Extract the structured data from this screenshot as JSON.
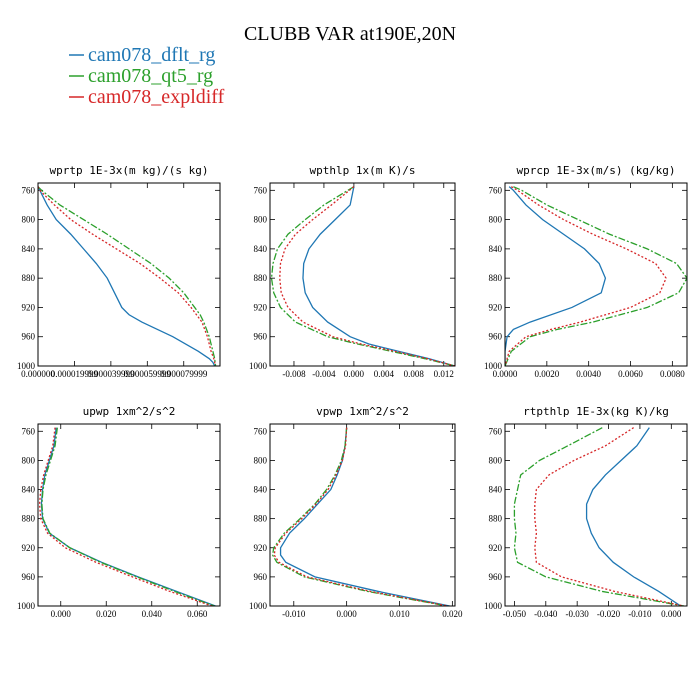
{
  "figure": {
    "title": "CLUBB VAR at190E,20N"
  },
  "legend": [
    {
      "name": "cam078_dflt_rg",
      "color": "#1f77b4",
      "dash": "solid"
    },
    {
      "name": "cam078_qt5_rg",
      "color": "#2ca02c",
      "dash": "dashdot"
    },
    {
      "name": "cam078_expldiff",
      "color": "#d62728",
      "dash": "dotted"
    }
  ],
  "chart_data": [
    {
      "type": "line",
      "title": "wprtp  1E-3x(m kg)/(s kg)",
      "xlim": [
        0.0,
        9.99e-05
      ],
      "ylim": [
        1000,
        750
      ],
      "xticks": [
        0.0,
        2e-05,
        4e-05,
        6e-05,
        8e-05
      ],
      "xtick_labels": [
        "0.000000",
        "0.000019999",
        "0.000039999",
        "0.000059999",
        "0.000079999"
      ],
      "yticks": [
        760,
        800,
        840,
        880,
        920,
        960,
        1000
      ],
      "pressure": [
        755,
        760,
        780,
        800,
        820,
        840,
        860,
        880,
        900,
        920,
        930,
        940,
        960,
        980,
        990,
        995,
        1000
      ],
      "series": [
        {
          "name": "cam078_dflt_rg",
          "values": [
            0.0,
            1e-06,
            5e-06,
            1e-05,
            1.8e-05,
            2.5e-05,
            3.2e-05,
            3.8e-05,
            4.2e-05,
            4.6e-05,
            5e-05,
            5.7e-05,
            7.4e-05,
            8.8e-05,
            9.4e-05,
            9.6e-05,
            9.7e-05
          ]
        },
        {
          "name": "cam078_qt5_rg",
          "values": [
            0.0,
            2e-06,
            1.2e-05,
            2.5e-05,
            3.8e-05,
            5e-05,
            6.2e-05,
            7.2e-05,
            8e-05,
            8.6e-05,
            8.9e-05,
            9.1e-05,
            9.4e-05,
            9.6e-05,
            9.7e-05,
            9.72e-05,
            9.75e-05
          ]
        },
        {
          "name": "cam078_expldiff",
          "values": [
            0.0,
            1e-06,
            9e-06,
            1.8e-05,
            3e-05,
            4.3e-05,
            5.6e-05,
            6.7e-05,
            7.7e-05,
            8.4e-05,
            8.7e-05,
            9e-05,
            9.3e-05,
            9.5e-05,
            9.65e-05,
            9.7e-05,
            9.73e-05
          ]
        }
      ]
    },
    {
      "type": "line",
      "title": "wpthlp  1x(m K)/s",
      "xlim": [
        -0.0112,
        0.0135
      ],
      "ylim": [
        1000,
        750
      ],
      "xticks": [
        -0.008,
        -0.004,
        0.0,
        0.004,
        0.008,
        0.012
      ],
      "xtick_labels": [
        "-0.008",
        "-0.004",
        "0.000",
        "0.004",
        "0.008",
        "0.012"
      ],
      "yticks": [
        760,
        800,
        840,
        880,
        920,
        960,
        1000
      ],
      "pressure": [
        755,
        780,
        800,
        820,
        840,
        860,
        880,
        900,
        920,
        940,
        960,
        970,
        980,
        990,
        1000
      ],
      "series": [
        {
          "name": "cam078_dflt_rg",
          "values": [
            0.0,
            -0.0005,
            -0.0025,
            -0.0045,
            -0.006,
            -0.0067,
            -0.0068,
            -0.0065,
            -0.0055,
            -0.0035,
            -0.0005,
            0.002,
            0.006,
            0.01,
            0.0135
          ]
        },
        {
          "name": "cam078_qt5_rg",
          "values": [
            0.0,
            -0.004,
            -0.0065,
            -0.0088,
            -0.0102,
            -0.0108,
            -0.011,
            -0.0107,
            -0.0098,
            -0.0078,
            -0.0035,
            0.0005,
            0.005,
            0.0095,
            0.0135
          ]
        },
        {
          "name": "cam078_expldiff",
          "values": [
            0.0,
            -0.003,
            -0.0055,
            -0.0078,
            -0.0092,
            -0.0098,
            -0.0099,
            -0.0097,
            -0.0088,
            -0.0068,
            -0.0028,
            0.001,
            0.0055,
            0.0098,
            0.0135
          ]
        }
      ]
    },
    {
      "type": "line",
      "title": "wprcp  1E-3x(m/s) (kg/kg)",
      "xlim": [
        0.0,
        0.0087
      ],
      "ylim": [
        1000,
        750
      ],
      "xticks": [
        0.0,
        0.002,
        0.004,
        0.006,
        0.008
      ],
      "xtick_labels": [
        "0.0000",
        "0.0020",
        "0.0040",
        "0.0060",
        "0.0080"
      ],
      "yticks": [
        760,
        800,
        840,
        880,
        920,
        960,
        1000
      ],
      "pressure": [
        755,
        760,
        780,
        800,
        820,
        840,
        860,
        880,
        900,
        920,
        940,
        950,
        960,
        980,
        1000
      ],
      "series": [
        {
          "name": "cam078_dflt_rg",
          "values": [
            0.0002,
            0.0004,
            0.001,
            0.0018,
            0.0028,
            0.0038,
            0.0045,
            0.0048,
            0.0046,
            0.0032,
            0.0012,
            0.0004,
            0.0001,
            0.0,
            0.0
          ]
        },
        {
          "name": "cam078_qt5_rg",
          "values": [
            0.0004,
            0.0008,
            0.002,
            0.0035,
            0.005,
            0.0068,
            0.0082,
            0.0087,
            0.0083,
            0.0068,
            0.0042,
            0.0025,
            0.0012,
            0.0003,
            0.0
          ]
        },
        {
          "name": "cam078_expldiff",
          "values": [
            0.0003,
            0.0006,
            0.0016,
            0.0028,
            0.0042,
            0.0058,
            0.0072,
            0.0077,
            0.0074,
            0.006,
            0.0036,
            0.0022,
            0.001,
            0.0002,
            0.0
          ]
        }
      ]
    },
    {
      "type": "line",
      "title": "upwp  1xm^2/s^2",
      "xlim": [
        -0.01,
        0.07
      ],
      "ylim": [
        1000,
        750
      ],
      "xticks": [
        0.0,
        0.02,
        0.04,
        0.06
      ],
      "xtick_labels": [
        "0.000",
        "0.020",
        "0.040",
        "0.060"
      ],
      "yticks": [
        760,
        800,
        840,
        880,
        920,
        960,
        1000
      ],
      "pressure": [
        755,
        780,
        800,
        820,
        840,
        860,
        880,
        900,
        920,
        940,
        960,
        980,
        1000
      ],
      "series": [
        {
          "name": "cam078_dflt_rg",
          "values": [
            -0.002,
            -0.003,
            -0.005,
            -0.007,
            -0.008,
            -0.0085,
            -0.008,
            -0.005,
            0.004,
            0.018,
            0.034,
            0.051,
            0.068
          ]
        },
        {
          "name": "cam078_qt5_rg",
          "values": [
            -0.0015,
            -0.0025,
            -0.0045,
            -0.0065,
            -0.0078,
            -0.0083,
            -0.0078,
            -0.0048,
            0.004,
            0.0175,
            0.0335,
            0.05,
            0.0675
          ]
        },
        {
          "name": "cam078_expldiff",
          "values": [
            -0.0025,
            -0.0035,
            -0.0055,
            -0.0075,
            -0.0088,
            -0.0093,
            -0.0088,
            -0.0058,
            0.002,
            0.0155,
            0.0315,
            0.048,
            0.0665
          ]
        }
      ]
    },
    {
      "type": "line",
      "title": "vpwp  1xm^2/s^2",
      "xlim": [
        -0.0145,
        0.0205
      ],
      "ylim": [
        1000,
        750
      ],
      "xticks": [
        -0.01,
        0.0,
        0.01,
        0.02
      ],
      "xtick_labels": [
        "-0.010",
        "0.000",
        "0.010",
        "0.020"
      ],
      "yticks": [
        760,
        800,
        840,
        880,
        920,
        960,
        1000
      ],
      "pressure": [
        755,
        780,
        800,
        820,
        840,
        860,
        880,
        900,
        920,
        930,
        940,
        960,
        980,
        1000
      ],
      "series": [
        {
          "name": "cam078_dflt_rg",
          "values": [
            0.0,
            -0.0003,
            -0.0008,
            -0.0018,
            -0.003,
            -0.0055,
            -0.008,
            -0.0108,
            -0.0125,
            -0.0125,
            -0.0115,
            -0.006,
            0.006,
            0.0195
          ]
        },
        {
          "name": "cam078_qt5_rg",
          "values": [
            0.0,
            -0.0003,
            -0.001,
            -0.0022,
            -0.0038,
            -0.006,
            -0.0088,
            -0.0118,
            -0.0138,
            -0.014,
            -0.0132,
            -0.008,
            0.004,
            0.019
          ]
        },
        {
          "name": "cam078_expldiff",
          "values": [
            0.0,
            -0.0002,
            -0.0008,
            -0.002,
            -0.0035,
            -0.0058,
            -0.0085,
            -0.0115,
            -0.0135,
            -0.0137,
            -0.0128,
            -0.0075,
            0.0045,
            0.0192
          ]
        }
      ]
    },
    {
      "type": "line",
      "title": "rtpthlp  1E-3x(kg K)/kg",
      "xlim": [
        -0.053,
        0.005
      ],
      "ylim": [
        1000,
        750
      ],
      "xticks": [
        -0.05,
        -0.04,
        -0.03,
        -0.02,
        -0.01,
        0.0
      ],
      "xtick_labels": [
        "-0.050",
        "-0.040",
        "-0.030",
        "-0.020",
        "-0.010",
        "0.000"
      ],
      "yticks": [
        760,
        800,
        840,
        880,
        920,
        960,
        1000
      ],
      "pressure": [
        755,
        780,
        800,
        820,
        840,
        860,
        880,
        900,
        920,
        940,
        960,
        980,
        1000
      ],
      "series": [
        {
          "name": "cam078_dflt_rg",
          "values": [
            -0.007,
            -0.011,
            -0.016,
            -0.021,
            -0.025,
            -0.027,
            -0.027,
            -0.0255,
            -0.023,
            -0.0185,
            -0.012,
            -0.004,
            0.003
          ]
        },
        {
          "name": "cam078_qt5_rg",
          "values": [
            -0.022,
            -0.033,
            -0.042,
            -0.048,
            -0.049,
            -0.05,
            -0.05,
            -0.0495,
            -0.05,
            -0.049,
            -0.04,
            -0.022,
            0.004
          ]
        },
        {
          "name": "cam078_expldiff",
          "values": [
            -0.012,
            -0.021,
            -0.031,
            -0.039,
            -0.043,
            -0.0435,
            -0.0435,
            -0.043,
            -0.0435,
            -0.043,
            -0.035,
            -0.018,
            0.004
          ]
        }
      ]
    }
  ]
}
